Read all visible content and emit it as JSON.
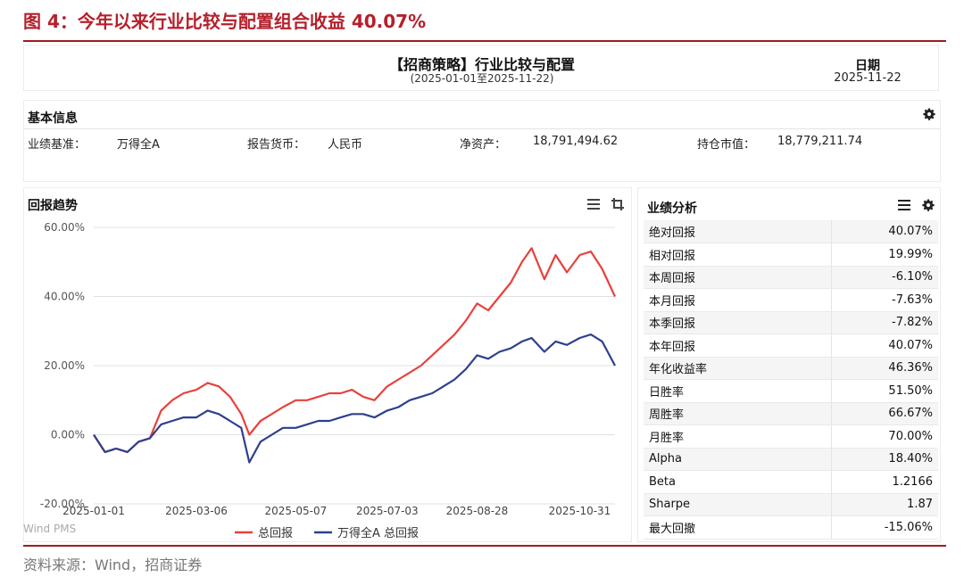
{
  "figure": {
    "title": "图 4：今年以来行业比较与配置组合收益 40.07%",
    "source": "资料来源：Wind，招商证券"
  },
  "report": {
    "title": "【招商策略】行业比较与配置",
    "range": "(2025-01-01至2025-11-22)",
    "date_label": "日期",
    "date_value": "2025-11-22"
  },
  "basic_info": {
    "title": "基本信息",
    "benchmark_label": "业绩基准：",
    "benchmark_value": "万得全A",
    "currency_label": "报告货币：",
    "currency_value": "人民币",
    "nav_label": "净资产：",
    "nav_value": "18,791,494.62",
    "mv_label": "持仓市值：",
    "mv_value": "18,779,211.74"
  },
  "trend": {
    "title": "回报趋势",
    "watermark": "Wind PMS"
  },
  "performance": {
    "title": "业绩分析",
    "rows": [
      {
        "label": "绝对回报",
        "value": "40.07%"
      },
      {
        "label": "相对回报",
        "value": "19.99%"
      },
      {
        "label": "本周回报",
        "value": "-6.10%"
      },
      {
        "label": "本月回报",
        "value": "-7.63%"
      },
      {
        "label": "本季回报",
        "value": "-7.82%"
      },
      {
        "label": "本年回报",
        "value": "40.07%"
      },
      {
        "label": "年化收益率",
        "value": "46.36%"
      },
      {
        "label": "日胜率",
        "value": "51.50%"
      },
      {
        "label": "周胜率",
        "value": "66.67%"
      },
      {
        "label": "月胜率",
        "value": "70.00%"
      },
      {
        "label": "Alpha",
        "value": "18.40%"
      },
      {
        "label": "Beta",
        "value": "1.2166"
      },
      {
        "label": "Sharpe",
        "value": "1.87"
      },
      {
        "label": "最大回撤",
        "value": "-15.06%"
      }
    ]
  },
  "colors": {
    "portfolio": "#e8413c",
    "benchmark": "#2e3f8f",
    "title_red": "#b5202b"
  },
  "chart_data": {
    "type": "line",
    "ylim": [
      -20,
      60
    ],
    "y_ticks": [
      "60.00%",
      "40.00%",
      "20.00%",
      "0.00%",
      "-20.00%"
    ],
    "x_ticks": [
      "2025-01-01",
      "2025-03-06",
      "2025-05-07",
      "2025-07-03",
      "2025-08-28",
      "2025-10-31"
    ],
    "x": [
      "2025-01-01",
      "2025-01-08",
      "2025-01-15",
      "2025-01-22",
      "2025-01-29",
      "2025-02-05",
      "2025-02-12",
      "2025-02-19",
      "2025-02-26",
      "2025-03-06",
      "2025-03-13",
      "2025-03-20",
      "2025-03-27",
      "2025-04-03",
      "2025-04-08",
      "2025-04-15",
      "2025-04-22",
      "2025-04-29",
      "2025-05-07",
      "2025-05-14",
      "2025-05-21",
      "2025-05-28",
      "2025-06-04",
      "2025-06-11",
      "2025-06-18",
      "2025-06-25",
      "2025-07-03",
      "2025-07-10",
      "2025-07-17",
      "2025-07-24",
      "2025-07-31",
      "2025-08-07",
      "2025-08-14",
      "2025-08-21",
      "2025-08-28",
      "2025-09-04",
      "2025-09-11",
      "2025-09-18",
      "2025-09-25",
      "2025-10-01",
      "2025-10-09",
      "2025-10-16",
      "2025-10-23",
      "2025-10-31",
      "2025-11-07",
      "2025-11-14",
      "2025-11-22"
    ],
    "series": [
      {
        "name": "总回报",
        "values": [
          0,
          -5,
          -4,
          -5,
          -2,
          -1,
          7,
          10,
          12,
          13,
          15,
          14,
          11,
          6,
          0,
          4,
          6,
          8,
          10,
          10,
          11,
          12,
          12,
          13,
          11,
          10,
          14,
          16,
          18,
          20,
          23,
          26,
          29,
          33,
          38,
          36,
          40,
          44,
          50,
          54,
          45,
          52,
          47,
          52,
          53,
          48,
          40
        ]
      },
      {
        "name": "万得全A 总回报",
        "values": [
          0,
          -5,
          -4,
          -5,
          -2,
          -1,
          3,
          4,
          5,
          5,
          7,
          6,
          4,
          2,
          -8,
          -2,
          0,
          2,
          2,
          3,
          4,
          4,
          5,
          6,
          6,
          5,
          7,
          8,
          10,
          11,
          12,
          14,
          16,
          19,
          23,
          22,
          24,
          25,
          27,
          28,
          24,
          27,
          26,
          28,
          29,
          27,
          20
        ]
      }
    ]
  }
}
